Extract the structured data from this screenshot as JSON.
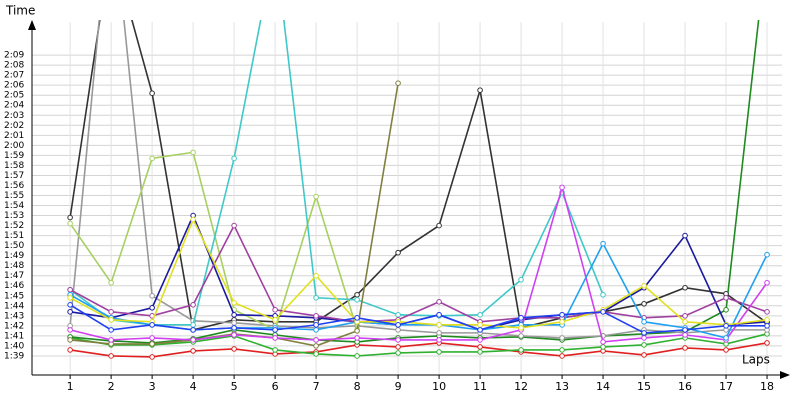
{
  "chart_data": {
    "type": "line",
    "y_label": "Time",
    "x_label": "Laps",
    "x": [
      1,
      2,
      3,
      4,
      5,
      6,
      7,
      8,
      9,
      10,
      11,
      12,
      13,
      14,
      15,
      16,
      17,
      18
    ],
    "xlim": [
      0.07,
      18.56
    ],
    "xticks": [
      1,
      2,
      3,
      4,
      5,
      6,
      7,
      8,
      9,
      10,
      11,
      12,
      13,
      14,
      15,
      16,
      17,
      18
    ],
    "ylim": [
      97.1,
      132.5
    ],
    "yticks": [
      {
        "value": 99,
        "label": "1:39"
      },
      {
        "value": 100,
        "label": "1:40"
      },
      {
        "value": 101,
        "label": "1:41"
      },
      {
        "value": 102,
        "label": "1:42"
      },
      {
        "value": 103,
        "label": "1:43"
      },
      {
        "value": 104,
        "label": "1:44"
      },
      {
        "value": 105,
        "label": "1:45"
      },
      {
        "value": 106,
        "label": "1:46"
      },
      {
        "value": 107,
        "label": "1:47"
      },
      {
        "value": 108,
        "label": "1:48"
      },
      {
        "value": 109,
        "label": "1:49"
      },
      {
        "value": 110,
        "label": "1:50"
      },
      {
        "value": 111,
        "label": "1:51"
      },
      {
        "value": 112,
        "label": "1:52"
      },
      {
        "value": 113,
        "label": "1:53"
      },
      {
        "value": 114,
        "label": "1:54"
      },
      {
        "value": 115,
        "label": "1:55"
      },
      {
        "value": 116,
        "label": "1:56"
      },
      {
        "value": 117,
        "label": "1:57"
      },
      {
        "value": 118,
        "label": "1:58"
      },
      {
        "value": 119,
        "label": "1:59"
      },
      {
        "value": 120,
        "label": "2:00"
      },
      {
        "value": 121,
        "label": "2:01"
      },
      {
        "value": 122,
        "label": "2:02"
      },
      {
        "value": 123,
        "label": "2:03"
      },
      {
        "value": 124,
        "label": "2:04"
      },
      {
        "value": 125,
        "label": "2:05"
      },
      {
        "value": 126,
        "label": "2:06"
      },
      {
        "value": 127,
        "label": "2:07"
      },
      {
        "value": 128,
        "label": "2:08"
      },
      {
        "value": 129,
        "label": "2:09"
      }
    ],
    "grid": true,
    "series": [
      {
        "color": "#e02020",
        "values": [
          99.6,
          99,
          98.9,
          99.5,
          99.7,
          99.2,
          99.4,
          100.1,
          99.9,
          100.3,
          99.9,
          99.4,
          99,
          99.5,
          99.1,
          99.8,
          99.6,
          100.3
        ]
      },
      {
        "color": "#30b030",
        "values": [
          100.8,
          100.1,
          100.1,
          100.4,
          101,
          99.6,
          99.2,
          99,
          99.3,
          99.4,
          99.4,
          99.6,
          99.6,
          99.9,
          100.1,
          100.8,
          100.2,
          101.2
        ]
      },
      {
        "color": "#208a20",
        "values": [
          100.9,
          100.5,
          100.3,
          100.7,
          101.6,
          101.1,
          100.6,
          100.4,
          100.8,
          101,
          100.8,
          100.9,
          100.6,
          101,
          101.2,
          101.4,
          103.6,
          140
        ]
      },
      {
        "color": "#333333",
        "values": [
          112.8,
          140,
          125.2,
          101.6,
          102.6,
          102.4,
          102.4,
          105.1,
          109.3,
          112,
          125.5,
          101.8,
          102.8,
          103.4,
          104.2,
          105.8,
          105.2,
          102.3
        ]
      },
      {
        "color": "#999999",
        "values": [
          102,
          145,
          105,
          102.5,
          102.3,
          102,
          101.8,
          102,
          101.6,
          101.3,
          101.3,
          101,
          100.8,
          101,
          101.6,
          101.3,
          101.6,
          101.6
        ]
      },
      {
        "color": "#a8d060",
        "values": [
          112.2,
          106.3,
          118.7,
          119.3,
          103.6,
          101.6,
          114.9,
          101.6,
          null,
          null,
          null,
          null,
          null,
          null,
          null,
          null,
          null,
          null
        ]
      },
      {
        "color": "#40c8c8",
        "values": [
          105.6,
          102.6,
          102.1,
          102.1,
          118.7,
          140,
          104.8,
          104.6,
          103.1,
          103,
          103.1,
          106.6,
          115.3,
          105.1,
          null,
          null,
          null,
          null
        ]
      },
      {
        "color": "#808040",
        "values": [
          100.6,
          100.2,
          100.2,
          100.6,
          101.2,
          100.8,
          100,
          101.5,
          126.2,
          null,
          null,
          null,
          null,
          null,
          null,
          null,
          null,
          null
        ]
      },
      {
        "color": "#1a1aa0",
        "values": [
          103.4,
          102.8,
          103.8,
          113,
          103.1,
          103,
          102.8,
          102.4,
          102.1,
          103.1,
          101.6,
          102.6,
          103.1,
          103.4,
          105.8,
          111,
          102.1,
          102.4
        ]
      },
      {
        "color": "#a040a0",
        "values": [
          105.6,
          103.4,
          103,
          104.1,
          112,
          103.6,
          103,
          102.4,
          102.6,
          104.4,
          102.4,
          102.8,
          102.8,
          103.4,
          102.8,
          103,
          104.8,
          103.4
        ]
      },
      {
        "color": "#d040f0",
        "values": [
          101.6,
          100.6,
          100.8,
          100.6,
          101.1,
          100.8,
          100.6,
          100.8,
          100.6,
          100.6,
          100.6,
          101.6,
          115.8,
          100.4,
          100.8,
          101.1,
          100.6,
          106.3
        ]
      },
      {
        "color": "#20a0f0",
        "values": [
          105.1,
          102.8,
          102.1,
          101.6,
          101.8,
          101.8,
          101.6,
          102.4,
          102.1,
          102.1,
          101.6,
          102.1,
          102.1,
          110.2,
          102.4,
          101.8,
          100.8,
          109.1
        ]
      },
      {
        "color": "#e0e020",
        "values": [
          104.8,
          102.6,
          102.4,
          112.6,
          104.3,
          102.6,
          107,
          102.4,
          102.4,
          102.1,
          102.1,
          101.8,
          102.4,
          103.6,
          106,
          102.4,
          102.1,
          102.6
        ]
      },
      {
        "color": "#2040f0",
        "values": [
          104.1,
          101.6,
          102.1,
          101.6,
          101.8,
          101.6,
          102.1,
          102.8,
          102.1,
          103.1,
          101.6,
          102.8,
          103.1,
          103.4,
          101.3,
          101.6,
          102,
          102
        ]
      }
    ]
  }
}
